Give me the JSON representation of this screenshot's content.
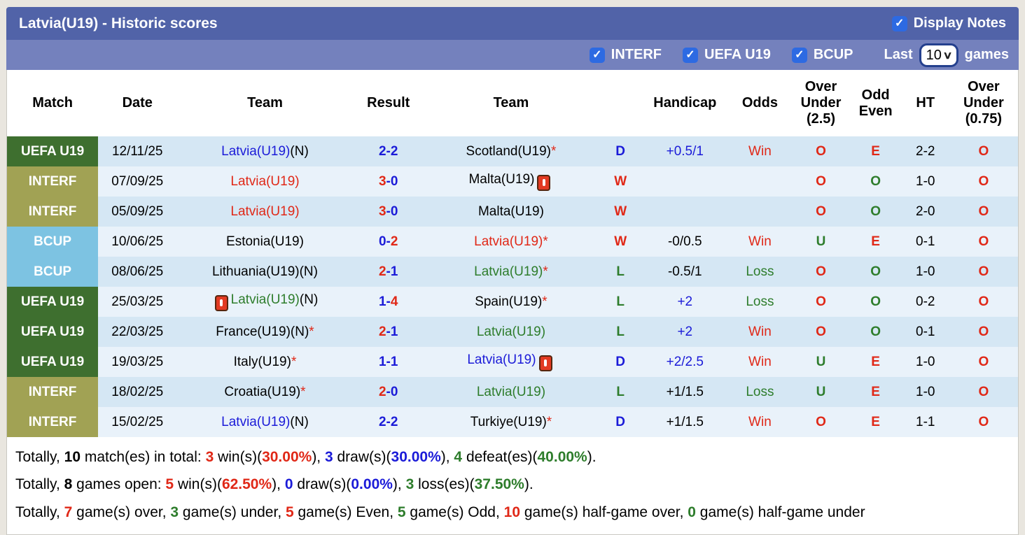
{
  "header": {
    "title": "Latvia(U19) - Historic scores",
    "display_notes_label": "Display Notes",
    "display_notes_checked": true
  },
  "icons": {
    "checkbox_check": "✓",
    "select_chevron": "∨"
  },
  "filters": {
    "competitions": [
      {
        "label": "INTERF",
        "checked": true
      },
      {
        "label": "UEFA U19",
        "checked": true
      },
      {
        "label": "BCUP",
        "checked": true
      }
    ],
    "last_label": "Last",
    "games_label": "games",
    "last_value": "10",
    "last_options": [
      "10"
    ]
  },
  "colors": {
    "accent_checkbox": "#2d6ae2",
    "title_bar": "#5163a8",
    "filter_bar": "#7481bd",
    "row_odd": "#d5e7f4",
    "row_even": "#e9f2fa",
    "red": "#e02817",
    "blue": "#1b1bd8",
    "green": "#2e7d2c",
    "badge_uefa": "#3e6f2f",
    "badge_interf": "#a1a254",
    "badge_bcup": "#7dc3e2"
  },
  "table": {
    "columns": [
      "Match",
      "Date",
      "Team",
      "Result",
      "Team",
      "",
      "Handicap",
      "Odds",
      "Over Under (2.5)",
      "Odd Even",
      "HT",
      "Over Under (0.75)"
    ],
    "badge_colors": {
      "UEFA U19": "#3e6f2f",
      "INTERF": "#a1a254",
      "BCUP": "#7dc3e2"
    },
    "rows": [
      {
        "comp": "UEFA U19",
        "date": "12/11/25",
        "home": {
          "name": "Latvia(U19)",
          "suffix": "(N)",
          "color": "blue",
          "star": false,
          "card": null
        },
        "score": {
          "h": "2",
          "hc": "blue",
          "a": "2",
          "ac": "blue"
        },
        "away": {
          "name": "Scotland(U19)",
          "suffix": "",
          "color": "black",
          "star": true,
          "card": null
        },
        "wdl": {
          "t": "D",
          "c": "blue"
        },
        "handicap": {
          "t": "+0.5/1",
          "c": "blue"
        },
        "odds": {
          "t": "Win",
          "c": "red"
        },
        "ou25": {
          "t": "O",
          "c": "red"
        },
        "oe": {
          "t": "E",
          "c": "red"
        },
        "ht": "2-2",
        "ou075": {
          "t": "O",
          "c": "red"
        }
      },
      {
        "comp": "INTERF",
        "date": "07/09/25",
        "home": {
          "name": "Latvia(U19)",
          "suffix": "",
          "color": "red",
          "star": false,
          "card": null
        },
        "score": {
          "h": "3",
          "hc": "red",
          "a": "0",
          "ac": "blue"
        },
        "away": {
          "name": "Malta(U19)",
          "suffix": "",
          "color": "black",
          "star": false,
          "card": "after"
        },
        "wdl": {
          "t": "W",
          "c": "red"
        },
        "handicap": {
          "t": "",
          "c": "black"
        },
        "odds": {
          "t": "",
          "c": "black"
        },
        "ou25": {
          "t": "O",
          "c": "red"
        },
        "oe": {
          "t": "O",
          "c": "green"
        },
        "ht": "1-0",
        "ou075": {
          "t": "O",
          "c": "red"
        }
      },
      {
        "comp": "INTERF",
        "date": "05/09/25",
        "home": {
          "name": "Latvia(U19)",
          "suffix": "",
          "color": "red",
          "star": false,
          "card": null
        },
        "score": {
          "h": "3",
          "hc": "red",
          "a": "0",
          "ac": "blue"
        },
        "away": {
          "name": "Malta(U19)",
          "suffix": "",
          "color": "black",
          "star": false,
          "card": null
        },
        "wdl": {
          "t": "W",
          "c": "red"
        },
        "handicap": {
          "t": "",
          "c": "black"
        },
        "odds": {
          "t": "",
          "c": "black"
        },
        "ou25": {
          "t": "O",
          "c": "red"
        },
        "oe": {
          "t": "O",
          "c": "green"
        },
        "ht": "2-0",
        "ou075": {
          "t": "O",
          "c": "red"
        }
      },
      {
        "comp": "BCUP",
        "date": "10/06/25",
        "home": {
          "name": "Estonia(U19)",
          "suffix": "",
          "color": "black",
          "star": false,
          "card": null
        },
        "score": {
          "h": "0",
          "hc": "blue",
          "a": "2",
          "ac": "red"
        },
        "away": {
          "name": "Latvia(U19)",
          "suffix": "",
          "color": "red",
          "star": true,
          "card": null
        },
        "wdl": {
          "t": "W",
          "c": "red"
        },
        "handicap": {
          "t": "-0/0.5",
          "c": "black"
        },
        "odds": {
          "t": "Win",
          "c": "red"
        },
        "ou25": {
          "t": "U",
          "c": "green"
        },
        "oe": {
          "t": "E",
          "c": "red"
        },
        "ht": "0-1",
        "ou075": {
          "t": "O",
          "c": "red"
        }
      },
      {
        "comp": "BCUP",
        "date": "08/06/25",
        "home": {
          "name": "Lithuania(U19)",
          "suffix": "(N)",
          "color": "black",
          "star": false,
          "card": null
        },
        "score": {
          "h": "2",
          "hc": "red",
          "a": "1",
          "ac": "blue"
        },
        "away": {
          "name": "Latvia(U19)",
          "suffix": "",
          "color": "green",
          "star": true,
          "card": null
        },
        "wdl": {
          "t": "L",
          "c": "green"
        },
        "handicap": {
          "t": "-0.5/1",
          "c": "black"
        },
        "odds": {
          "t": "Loss",
          "c": "green"
        },
        "ou25": {
          "t": "O",
          "c": "red"
        },
        "oe": {
          "t": "O",
          "c": "green"
        },
        "ht": "1-0",
        "ou075": {
          "t": "O",
          "c": "red"
        }
      },
      {
        "comp": "UEFA U19",
        "date": "25/03/25",
        "home": {
          "name": "Latvia(U19)",
          "suffix": "(N)",
          "color": "green",
          "star": false,
          "card": "before"
        },
        "score": {
          "h": "1",
          "hc": "blue",
          "a": "4",
          "ac": "red"
        },
        "away": {
          "name": "Spain(U19)",
          "suffix": "",
          "color": "black",
          "star": true,
          "card": null
        },
        "wdl": {
          "t": "L",
          "c": "green"
        },
        "handicap": {
          "t": "+2",
          "c": "blue"
        },
        "odds": {
          "t": "Loss",
          "c": "green"
        },
        "ou25": {
          "t": "O",
          "c": "red"
        },
        "oe": {
          "t": "O",
          "c": "green"
        },
        "ht": "0-2",
        "ou075": {
          "t": "O",
          "c": "red"
        }
      },
      {
        "comp": "UEFA U19",
        "date": "22/03/25",
        "home": {
          "name": "France(U19)",
          "suffix": "(N)",
          "color": "black",
          "star": true,
          "card": null
        },
        "score": {
          "h": "2",
          "hc": "red",
          "a": "1",
          "ac": "blue"
        },
        "away": {
          "name": "Latvia(U19)",
          "suffix": "",
          "color": "green",
          "star": false,
          "card": null
        },
        "wdl": {
          "t": "L",
          "c": "green"
        },
        "handicap": {
          "t": "+2",
          "c": "blue"
        },
        "odds": {
          "t": "Win",
          "c": "red"
        },
        "ou25": {
          "t": "O",
          "c": "red"
        },
        "oe": {
          "t": "O",
          "c": "green"
        },
        "ht": "0-1",
        "ou075": {
          "t": "O",
          "c": "red"
        }
      },
      {
        "comp": "UEFA U19",
        "date": "19/03/25",
        "home": {
          "name": "Italy(U19)",
          "suffix": "",
          "color": "black",
          "star": true,
          "card": null
        },
        "score": {
          "h": "1",
          "hc": "blue",
          "a": "1",
          "ac": "blue"
        },
        "away": {
          "name": "Latvia(U19)",
          "suffix": "",
          "color": "blue",
          "star": false,
          "card": "after"
        },
        "wdl": {
          "t": "D",
          "c": "blue"
        },
        "handicap": {
          "t": "+2/2.5",
          "c": "blue"
        },
        "odds": {
          "t": "Win",
          "c": "red"
        },
        "ou25": {
          "t": "U",
          "c": "green"
        },
        "oe": {
          "t": "E",
          "c": "red"
        },
        "ht": "1-0",
        "ou075": {
          "t": "O",
          "c": "red"
        }
      },
      {
        "comp": "INTERF",
        "date": "18/02/25",
        "home": {
          "name": "Croatia(U19)",
          "suffix": "",
          "color": "black",
          "star": true,
          "card": null
        },
        "score": {
          "h": "2",
          "hc": "red",
          "a": "0",
          "ac": "blue"
        },
        "away": {
          "name": "Latvia(U19)",
          "suffix": "",
          "color": "green",
          "star": false,
          "card": null
        },
        "wdl": {
          "t": "L",
          "c": "green"
        },
        "handicap": {
          "t": "+1/1.5",
          "c": "black"
        },
        "odds": {
          "t": "Loss",
          "c": "green"
        },
        "ou25": {
          "t": "U",
          "c": "green"
        },
        "oe": {
          "t": "E",
          "c": "red"
        },
        "ht": "1-0",
        "ou075": {
          "t": "O",
          "c": "red"
        }
      },
      {
        "comp": "INTERF",
        "date": "15/02/25",
        "home": {
          "name": "Latvia(U19)",
          "suffix": "(N)",
          "color": "blue",
          "star": false,
          "card": null
        },
        "score": {
          "h": "2",
          "hc": "blue",
          "a": "2",
          "ac": "blue"
        },
        "away": {
          "name": "Turkiye(U19)",
          "suffix": "",
          "color": "black",
          "star": true,
          "card": null
        },
        "wdl": {
          "t": "D",
          "c": "blue"
        },
        "handicap": {
          "t": "+1/1.5",
          "c": "black"
        },
        "odds": {
          "t": "Win",
          "c": "red"
        },
        "ou25": {
          "t": "O",
          "c": "red"
        },
        "oe": {
          "t": "E",
          "c": "red"
        },
        "ht": "1-1",
        "ou075": {
          "t": "O",
          "c": "red"
        }
      }
    ]
  },
  "summary": {
    "lines": [
      [
        {
          "t": "Totally, "
        },
        {
          "t": "10",
          "b": true
        },
        {
          "t": " match(es) in total: "
        },
        {
          "t": "3",
          "c": "red",
          "b": true
        },
        {
          "t": " win(s)("
        },
        {
          "t": "30.00%",
          "c": "red",
          "b": true
        },
        {
          "t": "), "
        },
        {
          "t": "3",
          "c": "blue",
          "b": true
        },
        {
          "t": " draw(s)("
        },
        {
          "t": "30.00%",
          "c": "blue",
          "b": true
        },
        {
          "t": "), "
        },
        {
          "t": "4",
          "c": "green",
          "b": true
        },
        {
          "t": " defeat(es)("
        },
        {
          "t": "40.00%",
          "c": "green",
          "b": true
        },
        {
          "t": ")."
        }
      ],
      [
        {
          "t": "Totally, "
        },
        {
          "t": "8",
          "b": true
        },
        {
          "t": " games open: "
        },
        {
          "t": "5",
          "c": "red",
          "b": true
        },
        {
          "t": " win(s)("
        },
        {
          "t": "62.50%",
          "c": "red",
          "b": true
        },
        {
          "t": "), "
        },
        {
          "t": "0",
          "c": "blue",
          "b": true
        },
        {
          "t": " draw(s)("
        },
        {
          "t": "0.00%",
          "c": "blue",
          "b": true
        },
        {
          "t": "), "
        },
        {
          "t": "3",
          "c": "green",
          "b": true
        },
        {
          "t": " loss(es)("
        },
        {
          "t": "37.50%",
          "c": "green",
          "b": true
        },
        {
          "t": ")."
        }
      ],
      [
        {
          "t": "Totally, "
        },
        {
          "t": "7",
          "c": "red",
          "b": true
        },
        {
          "t": " game(s) over, "
        },
        {
          "t": "3",
          "c": "green",
          "b": true
        },
        {
          "t": " game(s) under, "
        },
        {
          "t": "5",
          "c": "red",
          "b": true
        },
        {
          "t": " game(s) Even, "
        },
        {
          "t": "5",
          "c": "green",
          "b": true
        },
        {
          "t": " game(s) Odd, "
        },
        {
          "t": "10",
          "c": "red",
          "b": true
        },
        {
          "t": " game(s) half-game over, "
        },
        {
          "t": "0",
          "c": "green",
          "b": true
        },
        {
          "t": " game(s) half-game under"
        }
      ]
    ]
  }
}
